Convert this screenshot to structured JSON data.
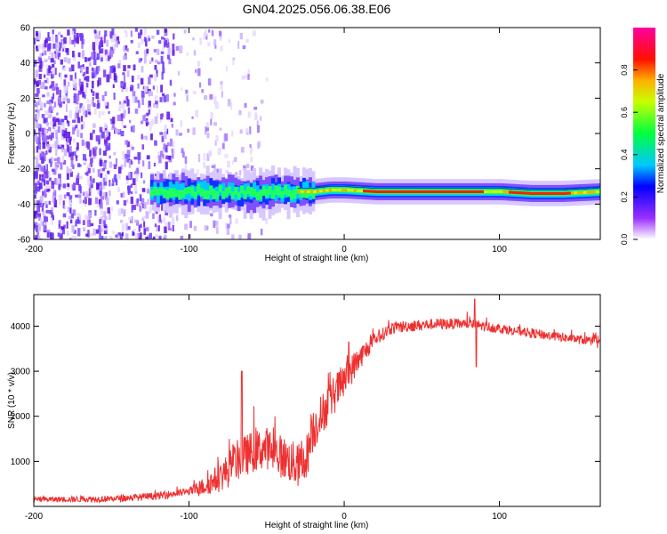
{
  "title": "GN04.2025.056.06.38.E06",
  "chart_data": [
    {
      "type": "heatmap",
      "name": "spectrogram",
      "xlabel": "Height of straight line (km)",
      "ylabel": "Frequency (Hz)",
      "xlim": [
        -200,
        165
      ],
      "ylim": [
        -60,
        60
      ],
      "xticks": [
        -200,
        -100,
        0,
        100
      ],
      "yticks": [
        -60,
        -40,
        -20,
        0,
        20,
        40,
        60
      ],
      "signal_line": {
        "x": [
          -120,
          -100,
          -80,
          -60,
          -40,
          -20,
          -10,
          0,
          20,
          50,
          80,
          100,
          120,
          140,
          165
        ],
        "freq": [
          -33,
          -33,
          -33,
          -34,
          -33,
          -33,
          -32,
          -32,
          -33,
          -33,
          -33,
          -33,
          -34,
          -34,
          -33
        ]
      },
      "noise_region_x": [
        -200,
        -85
      ]
    },
    {
      "type": "colorbar",
      "name": "colorbar",
      "label": "Normalized spectral amplitude",
      "range": [
        0,
        1
      ],
      "ticks": [
        "0.0",
        "0.2",
        "0.4",
        "0.6",
        "0.8"
      ],
      "tick_values": [
        0,
        0.2,
        0.4,
        0.6,
        0.8
      ]
    },
    {
      "type": "line",
      "name": "snr",
      "xlabel": "Height of straight line (km)",
      "ylabel": "SNR (10 * v/v)",
      "xlim": [
        -200,
        165
      ],
      "ylim": [
        0,
        4700
      ],
      "xticks": [
        -200,
        -100,
        0,
        100
      ],
      "yticks": [
        1000,
        2000,
        3000,
        4000
      ],
      "color": "#ee3030",
      "trend": {
        "x": [
          -200,
          -150,
          -120,
          -100,
          -90,
          -80,
          -75,
          -70,
          -60,
          -50,
          -40,
          -30,
          -25,
          -20,
          -10,
          0,
          10,
          20,
          30,
          40,
          60,
          80,
          100,
          120,
          140,
          165
        ],
        "y": [
          150,
          170,
          230,
          330,
          450,
          650,
          800,
          1000,
          1200,
          1300,
          1100,
          900,
          1000,
          1700,
          2300,
          2800,
          3300,
          3700,
          3950,
          4000,
          4050,
          4050,
          3950,
          3850,
          3750,
          3650
        ]
      },
      "noise": {
        "x": [
          -200,
          -100,
          -70,
          -20,
          0,
          20,
          50,
          165
        ],
        "amp": [
          120,
          180,
          900,
          1000,
          800,
          300,
          250,
          200
        ]
      },
      "spikes": [
        {
          "x": -66,
          "y": 3000
        },
        {
          "x": 3,
          "y": 3650
        },
        {
          "x": 84,
          "y": 4600
        },
        {
          "x": 85,
          "y": 3100
        }
      ]
    }
  ]
}
